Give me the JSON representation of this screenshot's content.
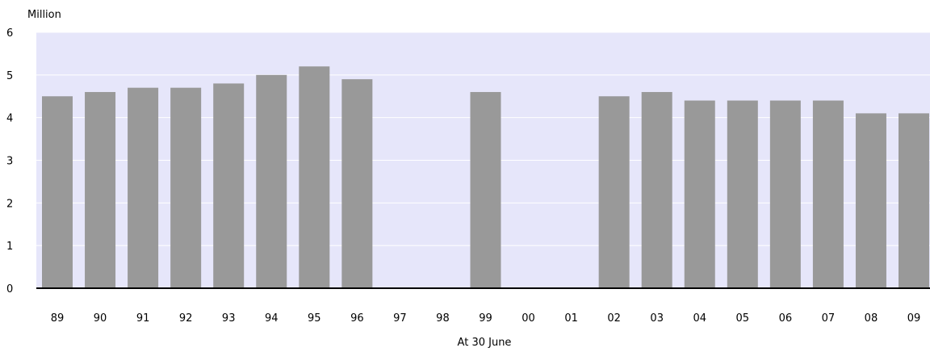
{
  "chart_data": {
    "type": "bar",
    "title": "",
    "ylabel": "Million",
    "xlabel": "At 30 June",
    "ylim": [
      0,
      6
    ],
    "yticks": [
      0,
      1,
      2,
      3,
      4,
      5,
      6
    ],
    "grid": true,
    "categories": [
      "89",
      "90",
      "91",
      "92",
      "93",
      "94",
      "95",
      "96",
      "97",
      "98",
      "99",
      "00",
      "01",
      "02",
      "03",
      "04",
      "05",
      "06",
      "07",
      "08",
      "09"
    ],
    "values": [
      4.5,
      4.6,
      4.7,
      4.7,
      4.8,
      5.0,
      5.2,
      4.9,
      null,
      null,
      4.6,
      null,
      null,
      4.5,
      4.6,
      4.4,
      4.4,
      4.4,
      4.4,
      4.1,
      4.1
    ],
    "colors": {
      "bar": "#999999",
      "plot_background": "#e6e6fa",
      "gridline": "#ffffff",
      "axis": "#000000"
    }
  }
}
